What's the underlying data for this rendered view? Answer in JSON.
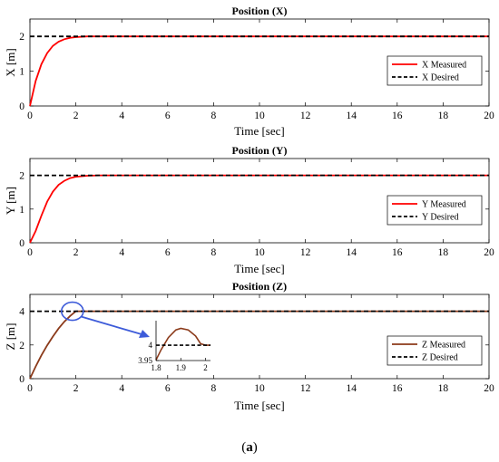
{
  "chart_data": [
    {
      "type": "line",
      "title": "Position (X)",
      "xlabel": "Time [sec]",
      "ylabel": "X [m]",
      "xlim": [
        0,
        20
      ],
      "ylim": [
        0,
        2.5
      ],
      "xticks": [
        "0",
        "2",
        "4",
        "6",
        "8",
        "10",
        "12",
        "14",
        "16",
        "18",
        "20"
      ],
      "yticks": [
        "0",
        "1",
        "2"
      ],
      "grid": false,
      "legend_position": "right",
      "series": [
        {
          "name": "X Measured",
          "color": "#ff0000",
          "style": "solid",
          "x": [
            0,
            0.25,
            0.5,
            0.75,
            1,
            1.25,
            1.5,
            1.75,
            2,
            2.5,
            3,
            4,
            20
          ],
          "y": [
            0,
            0.72,
            1.2,
            1.52,
            1.73,
            1.85,
            1.92,
            1.96,
            1.98,
            2.0,
            2.0,
            2.0,
            2.0
          ]
        },
        {
          "name": "X Desired",
          "color": "#000000",
          "style": "dashed",
          "x": [
            0,
            20
          ],
          "y": [
            2,
            2
          ]
        }
      ]
    },
    {
      "type": "line",
      "title": "Position (Y)",
      "xlabel": "Time [sec]",
      "ylabel": "Y [m]",
      "xlim": [
        0,
        20
      ],
      "ylim": [
        0,
        2.5
      ],
      "xticks": [
        "0",
        "2",
        "4",
        "6",
        "8",
        "10",
        "12",
        "14",
        "16",
        "18",
        "20"
      ],
      "yticks": [
        "0",
        "1",
        "2"
      ],
      "grid": false,
      "legend_position": "right",
      "series": [
        {
          "name": "Y Measured",
          "color": "#ff0000",
          "style": "solid",
          "x": [
            0,
            0.25,
            0.5,
            0.75,
            1,
            1.25,
            1.5,
            1.75,
            2,
            2.5,
            3,
            4,
            20
          ],
          "y": [
            0,
            0.35,
            0.8,
            1.22,
            1.52,
            1.72,
            1.84,
            1.92,
            1.96,
            1.99,
            2.0,
            2.0,
            2.0
          ]
        },
        {
          "name": "Y Desired",
          "color": "#000000",
          "style": "dashed",
          "x": [
            0,
            20
          ],
          "y": [
            2,
            2
          ]
        }
      ]
    },
    {
      "type": "line",
      "title": "Position (Z)",
      "xlabel": "Time [sec]",
      "ylabel": "Z [m]",
      "xlim": [
        0,
        20
      ],
      "ylim": [
        0,
        5
      ],
      "xticks": [
        "0",
        "2",
        "4",
        "6",
        "8",
        "10",
        "12",
        "14",
        "16",
        "18",
        "20"
      ],
      "yticks": [
        "0",
        "2",
        "4"
      ],
      "grid": false,
      "legend_position": "right",
      "series": [
        {
          "name": "Z Measured",
          "color": "#8b3a1a",
          "style": "solid",
          "x": [
            0,
            0.25,
            0.5,
            0.75,
            1,
            1.25,
            1.5,
            1.75,
            2,
            2.5,
            3,
            20
          ],
          "y": [
            0,
            0.72,
            1.38,
            1.98,
            2.5,
            2.98,
            3.38,
            3.72,
            4.0,
            4.0,
            4.0,
            4.0
          ]
        },
        {
          "name": "Z Desired",
          "color": "#000000",
          "style": "dashed",
          "x": [
            0,
            20
          ],
          "y": [
            4,
            4
          ]
        }
      ],
      "inset": {
        "xlim": [
          1.8,
          2.02
        ],
        "ylim": [
          3.95,
          4.08
        ],
        "xticks": [
          "1.8",
          "1.9",
          "2"
        ],
        "yticks": [
          "3.95",
          "4"
        ],
        "series": [
          {
            "color": "#8b3a1a",
            "style": "solid",
            "x": [
              1.8,
              1.82,
              1.85,
              1.88,
              1.9,
              1.93,
              1.96,
              1.98,
              2.0,
              2.02
            ],
            "y": [
              3.952,
              3.985,
              4.025,
              4.05,
              4.055,
              4.05,
              4.03,
              4.005,
              4.0,
              4.0
            ]
          },
          {
            "color": "#000000",
            "style": "dashed",
            "x": [
              1.8,
              2.02
            ],
            "y": [
              4,
              4
            ]
          }
        ]
      }
    }
  ],
  "caption": "(a)"
}
